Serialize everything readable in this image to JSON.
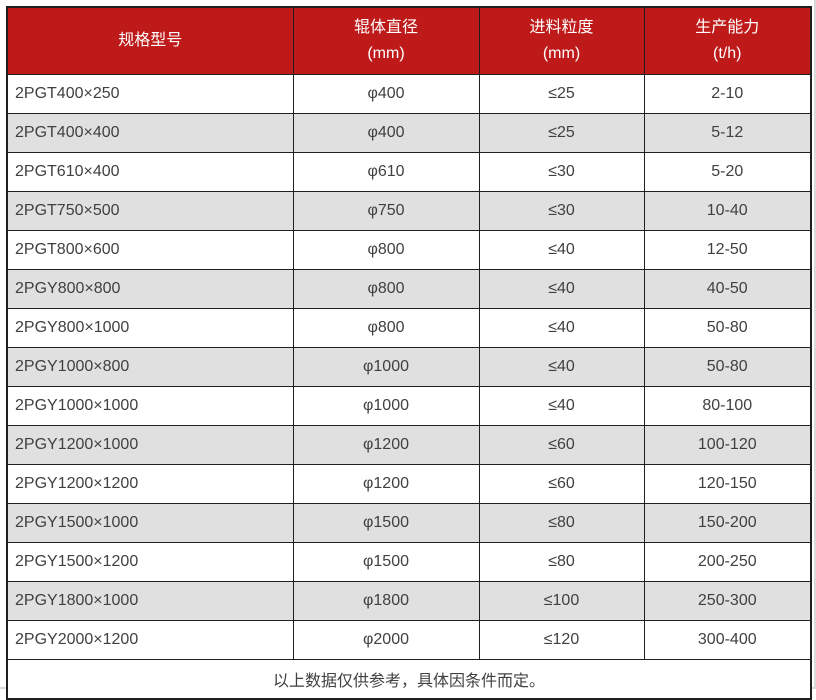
{
  "chart_data": {
    "type": "table",
    "title": "",
    "columns": [
      {
        "label": "规格型号",
        "unit": ""
      },
      {
        "label": "辊体直径",
        "unit": "(mm)"
      },
      {
        "label": "进料粒度",
        "unit": "(mm)"
      },
      {
        "label": "生产能力",
        "unit": "(t/h)"
      }
    ],
    "rows": [
      [
        "2PGT400×250",
        "φ400",
        "≤25",
        "2-10"
      ],
      [
        "2PGT400×400",
        "φ400",
        "≤25",
        "5-12"
      ],
      [
        "2PGT610×400",
        "φ610",
        "≤30",
        "5-20"
      ],
      [
        "2PGT750×500",
        "φ750",
        "≤30",
        "10-40"
      ],
      [
        "2PGT800×600",
        "φ800",
        "≤40",
        "12-50"
      ],
      [
        "2PGY800×800",
        "φ800",
        "≤40",
        "40-50"
      ],
      [
        "2PGY800×1000",
        "φ800",
        "≤40",
        "50-80"
      ],
      [
        "2PGY1000×800",
        "φ1000",
        "≤40",
        "50-80"
      ],
      [
        "2PGY1000×1000",
        "φ1000",
        "≤40",
        "80-100"
      ],
      [
        "2PGY1200×1000",
        "φ1200",
        "≤60",
        "100-120"
      ],
      [
        "2PGY1200×1200",
        "φ1200",
        "≤60",
        "120-150"
      ],
      [
        "2PGY1500×1000",
        "φ1500",
        "≤80",
        "150-200"
      ],
      [
        "2PGY1500×1200",
        "φ1500",
        "≤80",
        "200-250"
      ],
      [
        "2PGY1800×1000",
        "φ1800",
        "≤100",
        "250-300"
      ],
      [
        "2PGY2000×1200",
        "φ2000",
        "≤120",
        "300-400"
      ]
    ],
    "footnote": "以上数据仅供参考，具体因条件而定。"
  },
  "colors": {
    "header_bg": "#be1a1a",
    "header_text": "#ffffff",
    "stripe": "#e0e0e0",
    "row_white": "#ffffff",
    "grid_border": "#1f1f1f",
    "cell_text": "#404040"
  }
}
